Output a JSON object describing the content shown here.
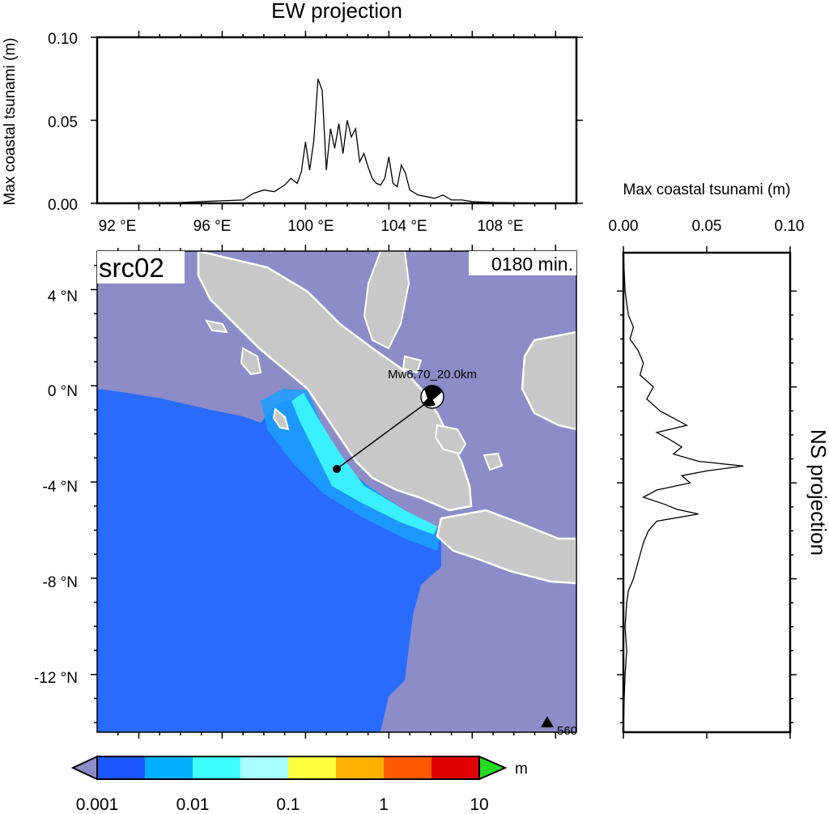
{
  "source_label": "src02",
  "time_label": "0180 min.",
  "event_label": "Mw6.70_20.0km",
  "station_label": "560",
  "ew_panel": {
    "title": "EW projection",
    "ylabel": "Max coastal tsunami (m)",
    "yticks": [
      "0.00",
      "0.05",
      "0.10"
    ],
    "xticks": [
      "92 °E",
      "96 °E",
      "100 °E",
      "104 °E",
      "108 °E"
    ]
  },
  "ns_panel": {
    "title": "NS projection",
    "xlabel": "Max coastal tsunami (m)",
    "xticks": [
      "0.00",
      "0.05",
      "0.10"
    ]
  },
  "map": {
    "yticks": [
      "4 °N",
      "0 °N",
      "-4 °N",
      "-8 °N",
      "-12 °N"
    ],
    "colors": {
      "sea_background": "#8c8cc8",
      "land": "#c8c8c8",
      "tsunami_low": "#2a6bff",
      "tsunami_mid": "#1aa0ff",
      "coast_high": "#40ffff",
      "coastline": "#ffffff"
    }
  },
  "colorbar": {
    "unit": "m",
    "ticks": [
      "0.001",
      "0.01",
      "0.1",
      "1",
      "10"
    ],
    "colors": [
      "#1a55ff",
      "#00b0ff",
      "#40ffff",
      "#a8ffff",
      "#ffff40",
      "#ffb000",
      "#ff5a00",
      "#e00000"
    ],
    "under_color": "#8c8cc8",
    "over_color": "#22dd22"
  },
  "chart_data": [
    {
      "type": "line",
      "title": "EW projection",
      "xlabel": "",
      "ylabel": "Max coastal tsunami (m)",
      "xlim": [
        90,
        113
      ],
      "ylim": [
        0,
        0.1
      ],
      "x": [
        90,
        92,
        94,
        95,
        96,
        97,
        97.5,
        98,
        98.5,
        99,
        99.3,
        99.6,
        99.8,
        100,
        100.2,
        100.4,
        100.6,
        100.8,
        101,
        101.2,
        101.4,
        101.6,
        101.8,
        102,
        102.2,
        102.4,
        102.6,
        102.8,
        103,
        103.2,
        103.4,
        103.6,
        103.8,
        104,
        104.2,
        104.4,
        104.6,
        104.8,
        105,
        105.4,
        105.8,
        106.2,
        106.6,
        107,
        107.5,
        108,
        109,
        110,
        111,
        113
      ],
      "y": [
        0,
        0.0003,
        0.0005,
        0.001,
        0.0015,
        0.002,
        0.006,
        0.008,
        0.007,
        0.011,
        0.015,
        0.012,
        0.019,
        0.037,
        0.02,
        0.038,
        0.075,
        0.068,
        0.02,
        0.045,
        0.033,
        0.048,
        0.03,
        0.05,
        0.04,
        0.045,
        0.025,
        0.03,
        0.022,
        0.015,
        0.012,
        0.011,
        0.015,
        0.028,
        0.012,
        0.01,
        0.023,
        0.018,
        0.008,
        0.005,
        0.004,
        0.003,
        0.005,
        0.002,
        0.002,
        0.001,
        0.0005,
        0.0003,
        0.0002,
        0.0001
      ]
    },
    {
      "type": "line",
      "title": "NS projection",
      "xlabel": "Max coastal tsunami (m)",
      "ylabel": "",
      "xlim": [
        0,
        0.1
      ],
      "ylim": [
        -14.4,
        5.6
      ],
      "lat": [
        5.6,
        4,
        3,
        2.5,
        2,
        1.5,
        1,
        0.5,
        0,
        -0.5,
        -1,
        -1.3,
        -1.6,
        -1.9,
        -2.2,
        -2.5,
        -2.8,
        -3.1,
        -3.3,
        -3.5,
        -3.7,
        -4,
        -4.3,
        -4.6,
        -4.9,
        -5.1,
        -5.3,
        -5.6,
        -6,
        -6.5,
        -7,
        -7.5,
        -8,
        -8.5,
        -9,
        -10,
        -11,
        -12,
        -13,
        -14.4
      ],
      "values": [
        0,
        0.001,
        0.003,
        0.006,
        0.004,
        0.009,
        0.012,
        0.01,
        0.018,
        0.014,
        0.022,
        0.03,
        0.038,
        0.02,
        0.028,
        0.035,
        0.03,
        0.045,
        0.072,
        0.05,
        0.035,
        0.04,
        0.02,
        0.012,
        0.025,
        0.032,
        0.045,
        0.02,
        0.015,
        0.012,
        0.01,
        0.008,
        0.006,
        0.003,
        0.002,
        0.001,
        0.002,
        0.001,
        0.0005,
        0
      ]
    }
  ]
}
